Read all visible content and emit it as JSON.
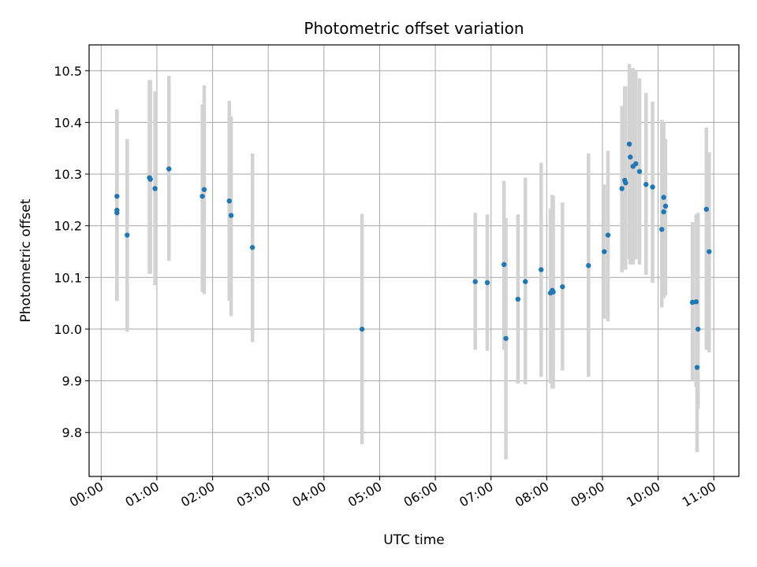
{
  "chart_data": {
    "type": "scatter",
    "title": "Photometric offset variation",
    "xlabel": "UTC time",
    "ylabel": "Photometric offset",
    "xlim": [
      "23:47",
      "11:27"
    ],
    "ylim": [
      9.715,
      10.55
    ],
    "grid": true,
    "x_ticks": [
      "00:00",
      "01:00",
      "02:00",
      "03:00",
      "04:00",
      "05:00",
      "06:00",
      "07:00",
      "08:00",
      "09:00",
      "10:00",
      "11:00"
    ],
    "y_ticks": [
      9.8,
      9.9,
      10.0,
      10.1,
      10.2,
      10.3,
      10.4,
      10.5
    ],
    "y_tick_labels": [
      "9.8",
      "9.9",
      "10.0",
      "10.1",
      "10.2",
      "10.3",
      "10.4",
      "10.5"
    ],
    "colors": {
      "point": "#1f77b4",
      "errorbar": "#d3d3d3",
      "grid": "#b0b0b0"
    },
    "series": [
      {
        "x": [
          "00:17",
          "00:17",
          "00:17",
          "00:28",
          "00:52",
          "00:53",
          "00:58",
          "01:13",
          "01:49",
          "01:51",
          "02:18",
          "02:20",
          "02:43",
          "04:41",
          "06:43",
          "06:56",
          "07:14",
          "07:16",
          "07:29",
          "07:37",
          "07:54",
          "08:04",
          "08:06",
          "08:07",
          "08:17",
          "08:45",
          "09:02",
          "09:06",
          "09:21",
          "09:24",
          "09:25",
          "09:29",
          "09:30",
          "09:33",
          "09:36",
          "09:40",
          "09:47",
          "09:54",
          "10:04",
          "10:06",
          "10:06",
          "10:08",
          "10:37",
          "10:41",
          "10:42",
          "10:43",
          "10:52",
          "10:55"
        ],
        "y": [
          10.23,
          10.225,
          10.257,
          10.182,
          10.293,
          10.29,
          10.272,
          10.31,
          10.257,
          10.27,
          10.248,
          10.22,
          10.158,
          10.0,
          10.092,
          10.09,
          10.125,
          9.982,
          10.058,
          10.092,
          10.115,
          10.07,
          10.075,
          10.072,
          10.082,
          10.123,
          10.15,
          10.182,
          10.272,
          10.288,
          10.283,
          10.358,
          10.333,
          10.315,
          10.32,
          10.305,
          10.28,
          10.275,
          10.193,
          10.255,
          10.227,
          10.238,
          10.052,
          10.053,
          9.926,
          10.0,
          10.232,
          10.15
        ],
        "err_low": [
          10.055,
          10.055,
          10.055,
          9.995,
          10.107,
          10.107,
          10.085,
          10.132,
          10.072,
          10.068,
          10.055,
          10.025,
          9.975,
          9.777,
          9.96,
          9.958,
          9.96,
          9.748,
          9.895,
          9.893,
          9.908,
          9.895,
          9.885,
          9.885,
          9.92,
          9.908,
          10.02,
          10.015,
          10.11,
          10.115,
          10.115,
          10.135,
          10.125,
          10.125,
          10.135,
          10.125,
          10.105,
          10.09,
          10.042,
          10.06,
          10.06,
          10.065,
          9.9,
          9.888,
          9.762,
          9.845,
          9.96,
          9.955
        ],
        "err_high": [
          10.425,
          10.425,
          10.425,
          10.368,
          10.482,
          10.482,
          10.46,
          10.49,
          10.435,
          10.472,
          10.442,
          10.412,
          10.34,
          10.223,
          10.225,
          10.222,
          10.287,
          10.215,
          10.222,
          10.293,
          10.322,
          10.233,
          10.26,
          10.258,
          10.245,
          10.34,
          10.28,
          10.345,
          10.432,
          10.47,
          10.47,
          10.513,
          10.505,
          10.505,
          10.5,
          10.485,
          10.457,
          10.44,
          10.405,
          10.4,
          10.39,
          10.368,
          10.207,
          10.222,
          10.185,
          10.225,
          10.39,
          10.342
        ]
      }
    ]
  }
}
